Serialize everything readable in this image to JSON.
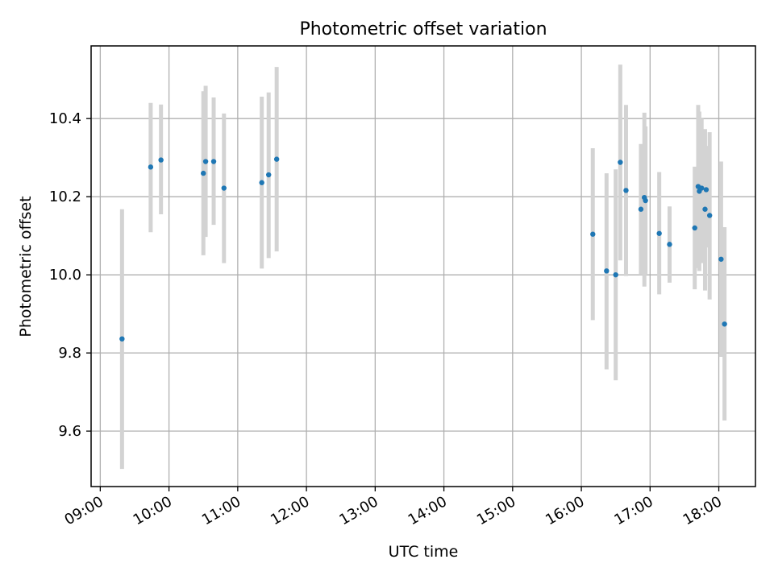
{
  "chart_data": {
    "type": "scatter",
    "title": "Photometric offset variation",
    "xlabel": "UTC time",
    "ylabel": "Photometric offset",
    "xlim": [
      "08:52",
      "18:32"
    ],
    "ylim": [
      9.458,
      10.586
    ],
    "grid": true,
    "x_ticks": [
      "09:00",
      "10:00",
      "11:00",
      "12:00",
      "13:00",
      "14:00",
      "15:00",
      "16:00",
      "17:00",
      "18:00"
    ],
    "y_ticks": [
      "9.6",
      "9.8",
      "10.0",
      "10.2",
      "10.4"
    ],
    "colors": {
      "point": "#1f77b4",
      "error_bar": "#d3d3d3",
      "grid": "#b0b0b0"
    },
    "series": [
      {
        "points": [
          {
            "x": "09:19",
            "y": 9.836,
            "ylow": 9.503,
            "yhigh": 10.168
          },
          {
            "x": "09:44",
            "y": 10.276,
            "ylow": 10.109,
            "yhigh": 10.44
          },
          {
            "x": "09:53",
            "y": 10.294,
            "ylow": 10.155,
            "yhigh": 10.436
          },
          {
            "x": "10:30",
            "y": 10.26,
            "ylow": 10.05,
            "yhigh": 10.47
          },
          {
            "x": "10:32",
            "y": 10.29,
            "ylow": 10.097,
            "yhigh": 10.484
          },
          {
            "x": "10:39",
            "y": 10.29,
            "ylow": 10.128,
            "yhigh": 10.454
          },
          {
            "x": "10:48",
            "y": 10.222,
            "ylow": 10.03,
            "yhigh": 10.413
          },
          {
            "x": "11:21",
            "y": 10.236,
            "ylow": 10.016,
            "yhigh": 10.456
          },
          {
            "x": "11:27",
            "y": 10.256,
            "ylow": 10.043,
            "yhigh": 10.467
          },
          {
            "x": "11:34",
            "y": 10.296,
            "ylow": 10.06,
            "yhigh": 10.532
          },
          {
            "x": "16:10",
            "y": 10.104,
            "ylow": 9.884,
            "yhigh": 10.324
          },
          {
            "x": "16:22",
            "y": 10.01,
            "ylow": 9.758,
            "yhigh": 10.26
          },
          {
            "x": "16:30",
            "y": 10.0,
            "ylow": 9.73,
            "yhigh": 10.27
          },
          {
            "x": "16:34",
            "y": 10.288,
            "ylow": 10.037,
            "yhigh": 10.538
          },
          {
            "x": "16:39",
            "y": 10.216,
            "ylow": 9.997,
            "yhigh": 10.435
          },
          {
            "x": "16:52",
            "y": 10.168,
            "ylow": 10.0,
            "yhigh": 10.335
          },
          {
            "x": "16:55",
            "y": 10.198,
            "ylow": 9.97,
            "yhigh": 10.415
          },
          {
            "x": "16:56",
            "y": 10.19,
            "ylow": 10.0,
            "yhigh": 10.38
          },
          {
            "x": "17:08",
            "y": 10.106,
            "ylow": 9.95,
            "yhigh": 10.263
          },
          {
            "x": "17:17",
            "y": 10.078,
            "ylow": 9.98,
            "yhigh": 10.175
          },
          {
            "x": "17:39",
            "y": 10.12,
            "ylow": 9.963,
            "yhigh": 10.277
          },
          {
            "x": "17:42",
            "y": 10.226,
            "ylow": 10.017,
            "yhigh": 10.435
          },
          {
            "x": "17:43",
            "y": 10.214,
            "ylow": 10.01,
            "yhigh": 10.418
          },
          {
            "x": "17:45",
            "y": 10.222,
            "ylow": 10.03,
            "yhigh": 10.4
          },
          {
            "x": "17:48",
            "y": 10.168,
            "ylow": 9.96,
            "yhigh": 10.373
          },
          {
            "x": "17:49",
            "y": 10.218,
            "ylow": 10.07,
            "yhigh": 10.33
          },
          {
            "x": "17:52",
            "y": 10.152,
            "ylow": 9.937,
            "yhigh": 10.365
          },
          {
            "x": "18:02",
            "y": 10.04,
            "ylow": 9.79,
            "yhigh": 10.29
          },
          {
            "x": "18:05",
            "y": 9.874,
            "ylow": 9.627,
            "yhigh": 10.122
          }
        ]
      }
    ]
  }
}
